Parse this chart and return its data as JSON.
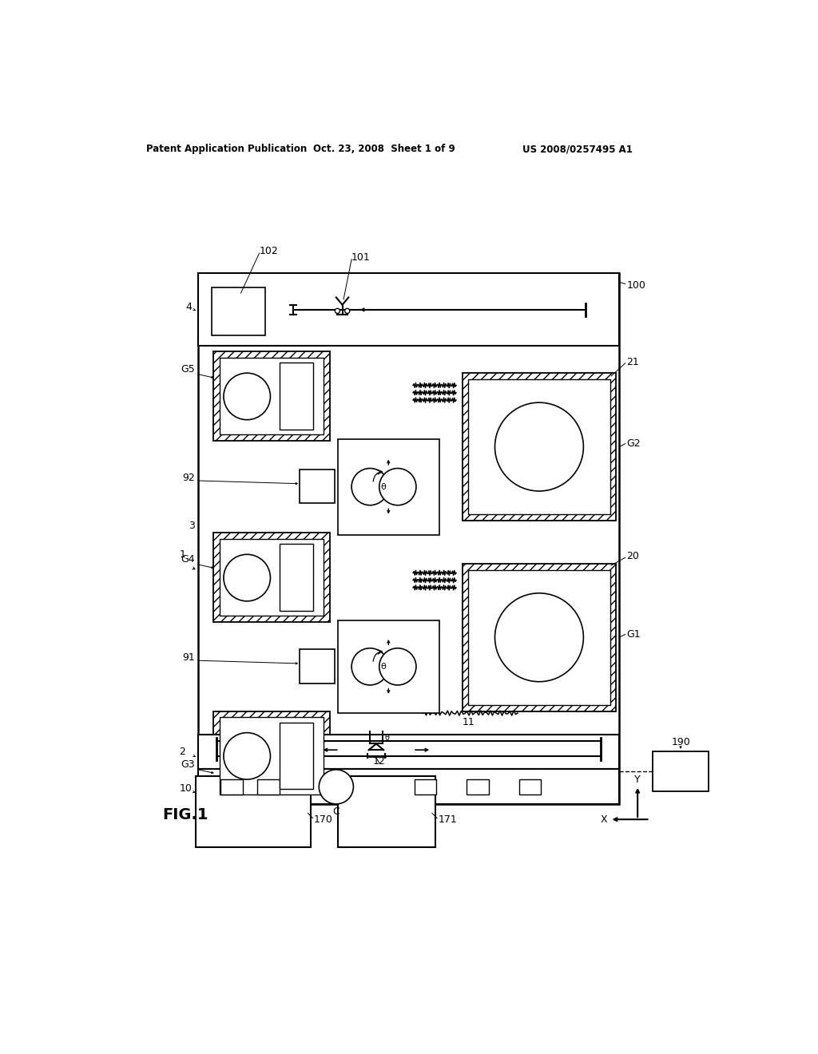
{
  "header_left": "Patent Application Publication",
  "header_middle": "Oct. 23, 2008  Sheet 1 of 9",
  "header_right": "US 2008/0257495 A1",
  "fig_label": "FIG.1",
  "bg_color": "#ffffff",
  "line_color": "#000000"
}
